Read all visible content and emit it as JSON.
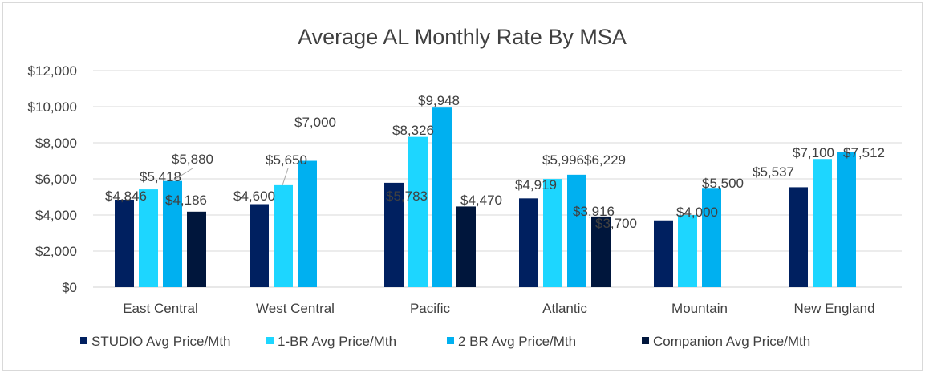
{
  "chart_data": {
    "type": "bar",
    "title": "Average AL Monthly Rate By MSA",
    "categories": [
      "East Central",
      "West Central",
      "Pacific",
      "Atlantic",
      "Mountain",
      "New England"
    ],
    "ylim": [
      0,
      12000
    ],
    "yticks": [
      "$0",
      "$2,000",
      "$4,000",
      "$6,000",
      "$8,000",
      "$10,000",
      "$12,000"
    ],
    "grid": true,
    "legend_position": "bottom",
    "series": [
      {
        "name": "STUDIO Avg Price/Mth",
        "color": "#002060",
        "values": [
          4846,
          4600,
          5783,
          4919,
          3700,
          5537
        ],
        "labels": [
          "$4,846",
          "$4,600",
          "$5,783",
          "$4,919",
          "$3,700",
          "$5,537"
        ]
      },
      {
        "name": "1-BR Avg Price/Mth",
        "color": "#1dd6ff",
        "values": [
          5418,
          5650,
          8326,
          5996,
          4000,
          7100
        ],
        "labels": [
          "$5,418",
          "$5,650",
          "$8,326",
          "$5,996",
          "$4,000",
          "$7,100"
        ]
      },
      {
        "name": "2 BR Avg Price/Mth",
        "color": "#00b0f0",
        "values": [
          5880,
          7000,
          9948,
          6229,
          5500,
          7512
        ],
        "labels": [
          "$5,880",
          "$7,000",
          "$9,948",
          "$6,229",
          "$5,500",
          "$7,512"
        ]
      },
      {
        "name": "Companion Avg Price/Mth",
        "color": "#00163c",
        "values": [
          4186,
          null,
          4470,
          3916,
          null,
          null
        ],
        "labels": [
          "$4,186",
          null,
          "$4,470",
          "$3,916",
          null,
          null
        ]
      }
    ]
  }
}
